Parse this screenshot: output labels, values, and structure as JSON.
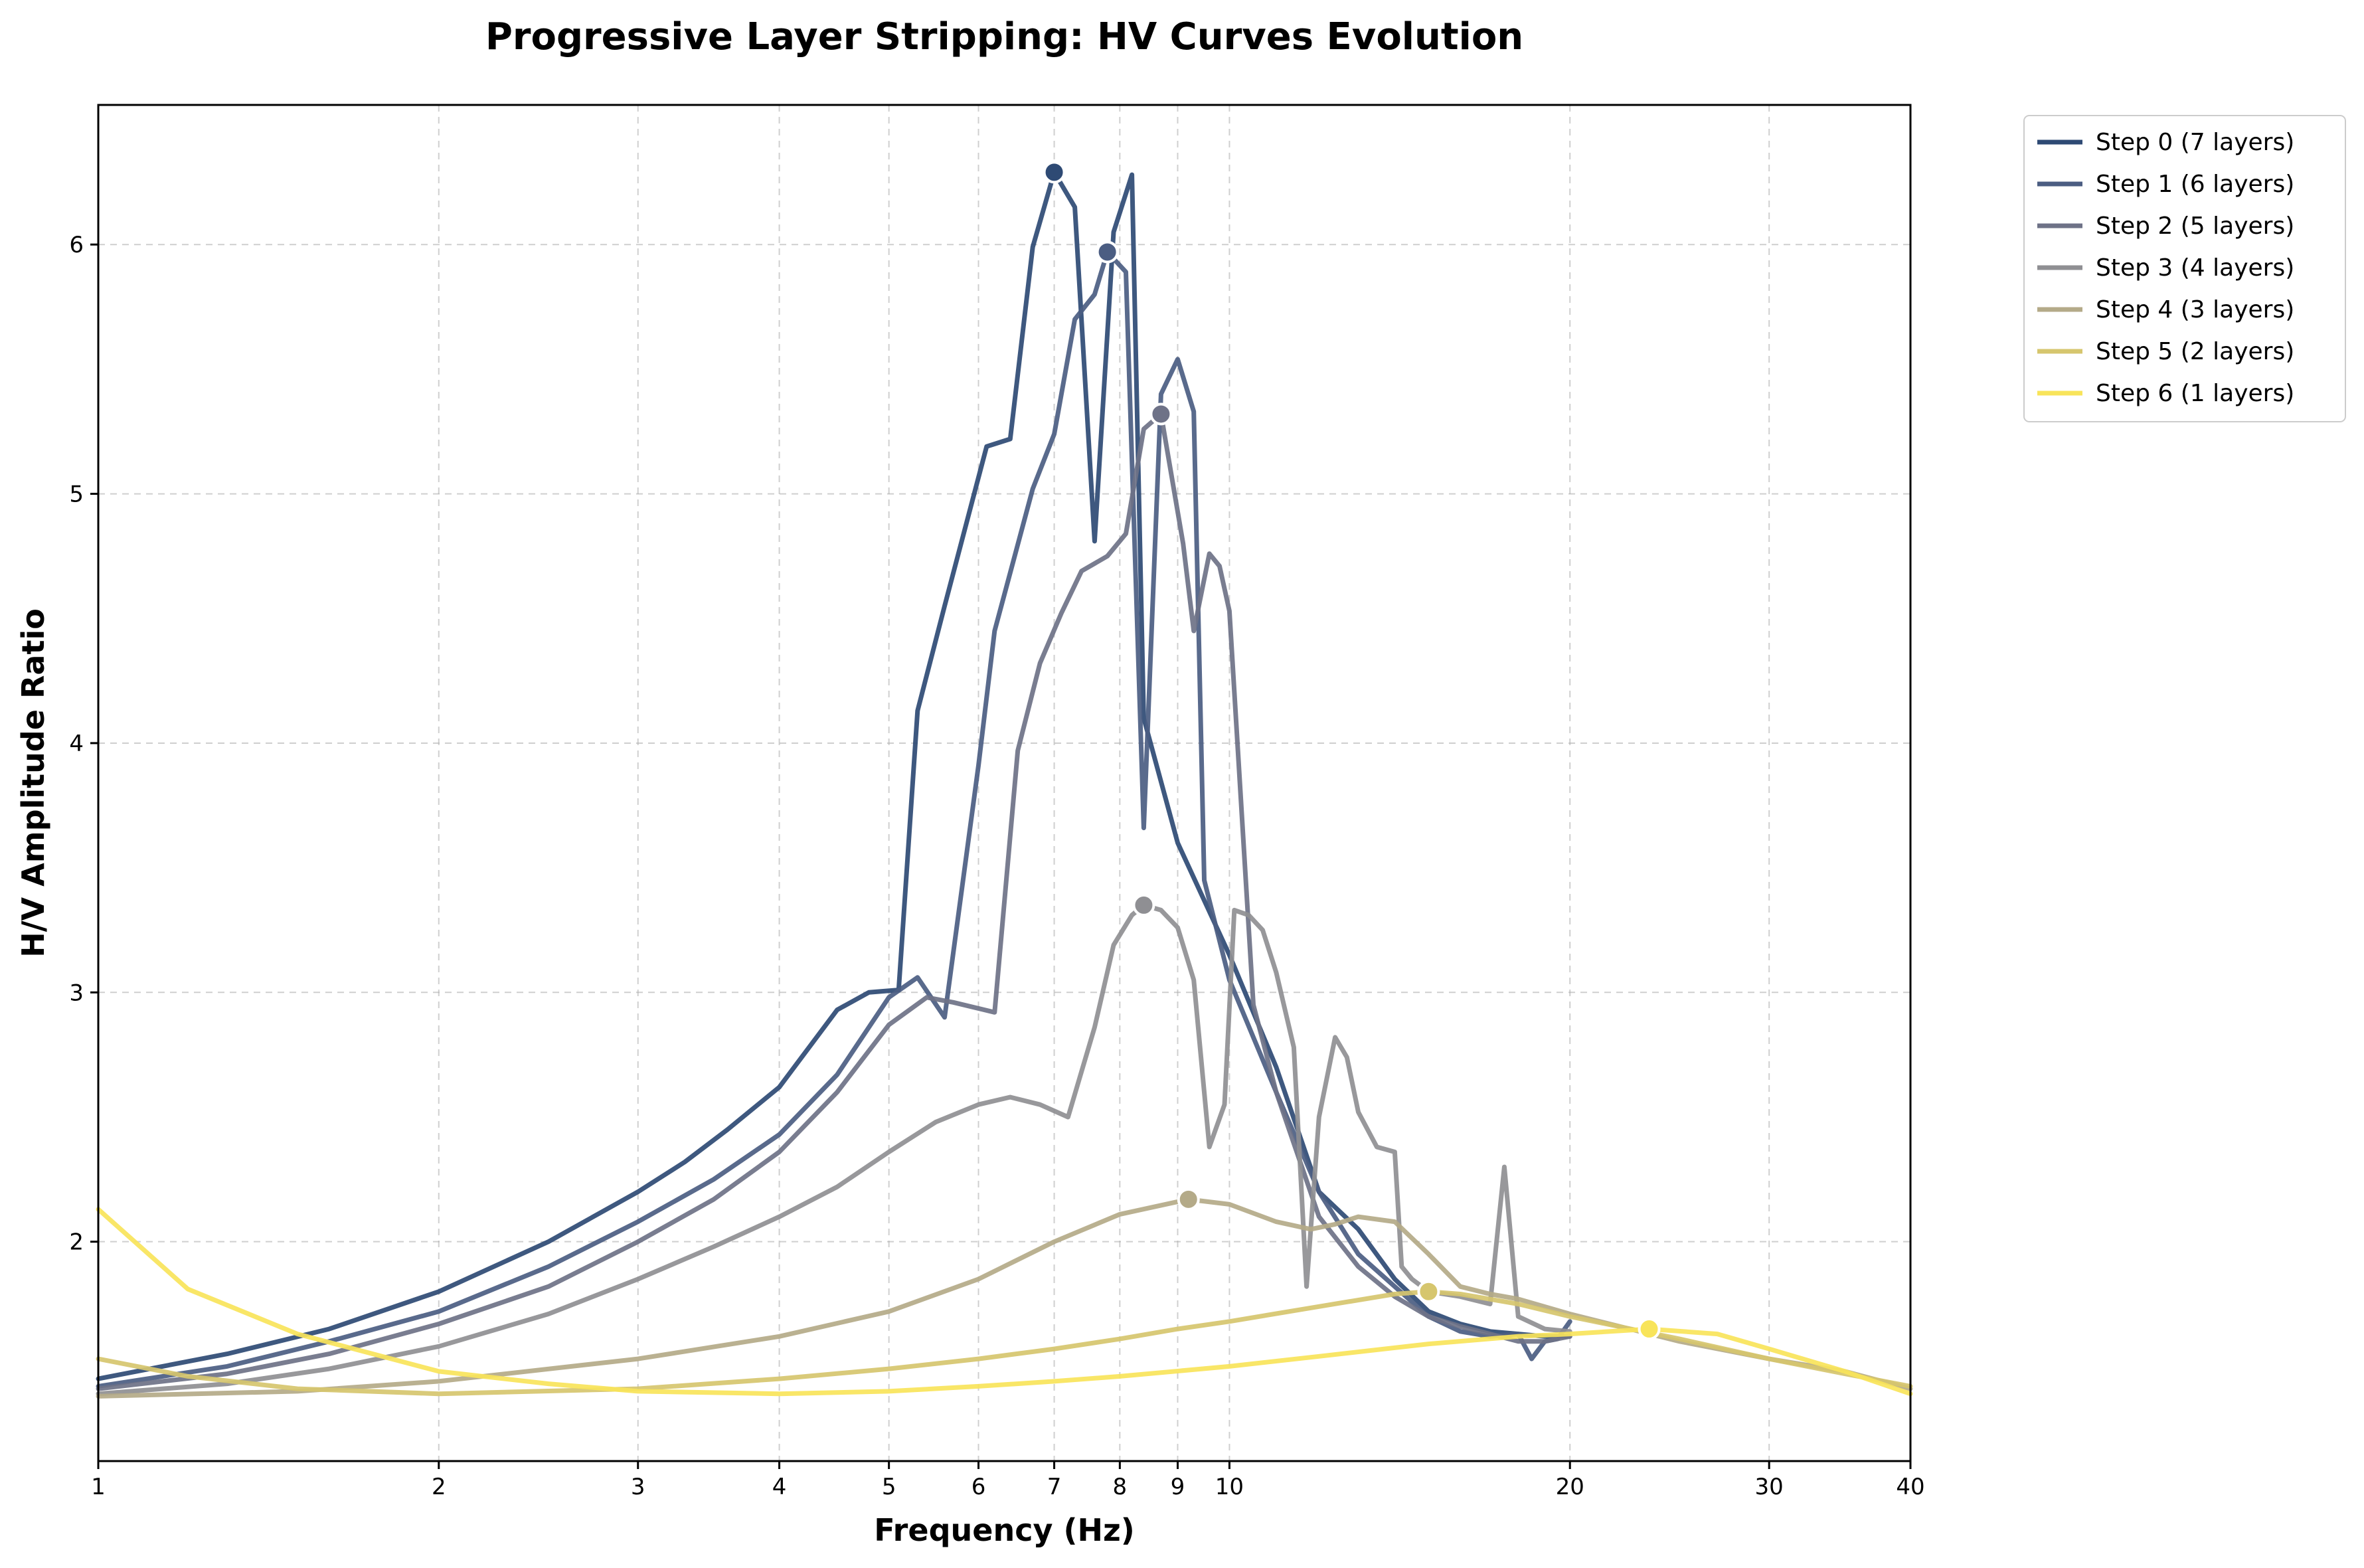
{
  "chart_data": {
    "type": "line",
    "title": "Progressive Layer Stripping: HV Curves Evolution",
    "xlabel": "Frequency (Hz)",
    "ylabel": "H/V Amplitude Ratio",
    "xscale": "log",
    "xlim": [
      1,
      40
    ],
    "ylim": [
      1.12,
      6.56
    ],
    "x_ticks": [
      {
        "value": 1,
        "label": "1"
      },
      {
        "value": 2,
        "label": "2"
      },
      {
        "value": 3,
        "label": "3"
      },
      {
        "value": 4,
        "label": "4"
      },
      {
        "value": 5,
        "label": "5"
      },
      {
        "value": 6,
        "label": "6"
      },
      {
        "value": 7,
        "label": "7"
      },
      {
        "value": 8,
        "label": "8"
      },
      {
        "value": 9,
        "label": "9"
      },
      {
        "value": 10,
        "label": "10"
      },
      {
        "value": 20,
        "label": "20"
      },
      {
        "value": 30,
        "label": "30"
      },
      {
        "value": 40,
        "label": "40"
      }
    ],
    "y_ticks": [
      {
        "value": 2,
        "label": "2"
      },
      {
        "value": 3,
        "label": "3"
      },
      {
        "value": 4,
        "label": "4"
      },
      {
        "value": 5,
        "label": "5"
      },
      {
        "value": 6,
        "label": "6"
      }
    ],
    "grid": true,
    "legend_position": "outside-top-right",
    "series": [
      {
        "name": "Step 0 (7 layers)",
        "color": "#2e4a74",
        "peak": {
          "x": 7.0,
          "y": 6.29
        },
        "x": [
          1.0,
          1.3,
          1.6,
          2.0,
          2.5,
          3.0,
          3.3,
          3.6,
          4.0,
          4.5,
          4.8,
          5.1,
          5.3,
          5.6,
          6.1,
          6.4,
          6.7,
          7.0,
          7.3,
          7.6,
          7.9,
          8.2,
          8.4,
          9.0,
          10.0,
          11.0,
          12.0,
          13.0,
          14.0,
          15.0,
          16.0,
          17.0,
          18.0,
          19.0,
          20.0
        ],
        "y": [
          1.45,
          1.55,
          1.65,
          1.8,
          2.0,
          2.2,
          2.32,
          2.45,
          2.62,
          2.93,
          3.0,
          3.01,
          4.13,
          4.55,
          5.19,
          5.22,
          5.99,
          6.29,
          6.15,
          4.81,
          6.05,
          6.28,
          4.1,
          3.6,
          3.15,
          2.7,
          2.2,
          2.05,
          1.85,
          1.72,
          1.67,
          1.64,
          1.63,
          1.62,
          1.62
        ]
      },
      {
        "name": "Step 1 (6 layers)",
        "color": "#4b5d82",
        "peak": {
          "x": 7.8,
          "y": 5.97
        },
        "x": [
          1.0,
          1.3,
          1.6,
          2.0,
          2.5,
          3.0,
          3.5,
          4.0,
          4.5,
          5.0,
          5.3,
          5.6,
          6.0,
          6.2,
          6.7,
          7.0,
          7.3,
          7.6,
          7.8,
          8.1,
          8.4,
          8.7,
          9.0,
          9.3,
          9.5,
          10.0,
          11.0,
          12.0,
          13.0,
          14.0,
          15.0,
          16.0,
          17.0,
          18.0,
          18.5,
          19.0,
          19.5,
          20.0
        ],
        "y": [
          1.42,
          1.5,
          1.6,
          1.72,
          1.9,
          2.08,
          2.25,
          2.43,
          2.67,
          2.98,
          3.06,
          2.9,
          3.91,
          4.45,
          5.02,
          5.24,
          5.7,
          5.8,
          5.97,
          5.89,
          3.66,
          5.4,
          5.54,
          5.33,
          3.45,
          3.05,
          2.6,
          2.2,
          1.95,
          1.82,
          1.7,
          1.64,
          1.62,
          1.63,
          1.53,
          1.6,
          1.61,
          1.68
        ]
      },
      {
        "name": "Step 2 (5 layers)",
        "color": "#6e7287",
        "peak": {
          "x": 8.7,
          "y": 5.32
        },
        "x": [
          1.0,
          1.3,
          1.6,
          2.0,
          2.5,
          3.0,
          3.5,
          4.0,
          4.5,
          5.0,
          5.4,
          5.7,
          6.2,
          6.5,
          6.8,
          7.1,
          7.4,
          7.8,
          8.1,
          8.4,
          8.7,
          9.1,
          9.3,
          9.6,
          9.8,
          10.0,
          10.5,
          11.0,
          12.0,
          13.0,
          14.0,
          15.0,
          16.0,
          17.0,
          18.0,
          19.0,
          20.0
        ],
        "y": [
          1.41,
          1.47,
          1.55,
          1.67,
          1.82,
          2.0,
          2.17,
          2.36,
          2.6,
          2.87,
          2.98,
          2.96,
          2.92,
          3.97,
          4.32,
          4.52,
          4.69,
          4.75,
          4.84,
          5.26,
          5.32,
          4.8,
          4.45,
          4.76,
          4.71,
          4.53,
          2.95,
          2.6,
          2.1,
          1.9,
          1.78,
          1.7,
          1.66,
          1.63,
          1.6,
          1.6,
          1.62
        ]
      },
      {
        "name": "Step 3 (4 layers)",
        "color": "#8f8f93",
        "peak": {
          "x": 8.4,
          "y": 3.35
        },
        "x": [
          1.0,
          1.3,
          1.6,
          2.0,
          2.5,
          3.0,
          3.5,
          4.0,
          4.5,
          5.0,
          5.5,
          6.0,
          6.4,
          6.8,
          7.2,
          7.6,
          7.9,
          8.2,
          8.4,
          8.7,
          9.0,
          9.3,
          9.6,
          9.9,
          10.1,
          10.4,
          10.7,
          11.0,
          11.4,
          11.7,
          12.0,
          12.4,
          12.7,
          13.0,
          13.5,
          14.0,
          14.2,
          14.5,
          15.0,
          16.0,
          17.0,
          17.5,
          18.0,
          19.0,
          20.0
        ],
        "y": [
          1.39,
          1.43,
          1.49,
          1.58,
          1.71,
          1.85,
          1.98,
          2.1,
          2.22,
          2.36,
          2.48,
          2.55,
          2.58,
          2.55,
          2.5,
          2.86,
          3.19,
          3.31,
          3.35,
          3.33,
          3.26,
          3.05,
          2.38,
          2.55,
          3.33,
          3.31,
          3.25,
          3.08,
          2.78,
          1.82,
          2.5,
          2.82,
          2.74,
          2.52,
          2.38,
          2.36,
          1.9,
          1.85,
          1.8,
          1.78,
          1.75,
          2.3,
          1.7,
          1.65,
          1.64
        ]
      },
      {
        "name": "Step 4 (3 layers)",
        "color": "#b4aa88",
        "peak": {
          "x": 9.2,
          "y": 2.17
        },
        "x": [
          1.0,
          1.5,
          2.0,
          3.0,
          4.0,
          5.0,
          6.0,
          7.0,
          8.0,
          9.2,
          10.0,
          11.0,
          11.8,
          12.4,
          13.0,
          14.0,
          15.0,
          16.0,
          17.0,
          18.0,
          20.0,
          25.0,
          30.0,
          35.0,
          40.0
        ],
        "y": [
          1.38,
          1.4,
          1.44,
          1.53,
          1.62,
          1.72,
          1.85,
          2.0,
          2.11,
          2.17,
          2.15,
          2.08,
          2.05,
          2.07,
          2.1,
          2.08,
          1.95,
          1.82,
          1.79,
          1.77,
          1.71,
          1.6,
          1.53,
          1.48,
          1.41
        ]
      },
      {
        "name": "Step 5 (2 layers)",
        "color": "#d6c66e",
        "peak": {
          "x": 15.0,
          "y": 1.8
        },
        "x": [
          1.0,
          1.2,
          1.5,
          2.0,
          3.0,
          4.0,
          5.0,
          6.0,
          7.0,
          8.0,
          9.0,
          10.0,
          12.0,
          14.0,
          15.0,
          16.0,
          18.0,
          20.0,
          25.0,
          30.0,
          35.0,
          40.0
        ],
        "y": [
          1.53,
          1.46,
          1.41,
          1.39,
          1.41,
          1.45,
          1.49,
          1.53,
          1.57,
          1.61,
          1.65,
          1.68,
          1.74,
          1.79,
          1.8,
          1.79,
          1.75,
          1.7,
          1.61,
          1.53,
          1.47,
          1.42
        ]
      },
      {
        "name": "Step 6 (1 layers)",
        "color": "#f8e45a",
        "peak": {
          "x": 23.5,
          "y": 1.65
        },
        "x": [
          1.0,
          1.2,
          1.5,
          2.0,
          2.5,
          3.0,
          4.0,
          5.0,
          6.0,
          7.0,
          8.0,
          10.0,
          12.0,
          15.0,
          18.0,
          20.0,
          23.5,
          27.0,
          30.0,
          35.0,
          40.0
        ],
        "y": [
          2.13,
          1.81,
          1.63,
          1.48,
          1.43,
          1.4,
          1.39,
          1.4,
          1.42,
          1.44,
          1.46,
          1.5,
          1.54,
          1.59,
          1.62,
          1.63,
          1.65,
          1.63,
          1.57,
          1.48,
          1.39
        ]
      }
    ]
  }
}
